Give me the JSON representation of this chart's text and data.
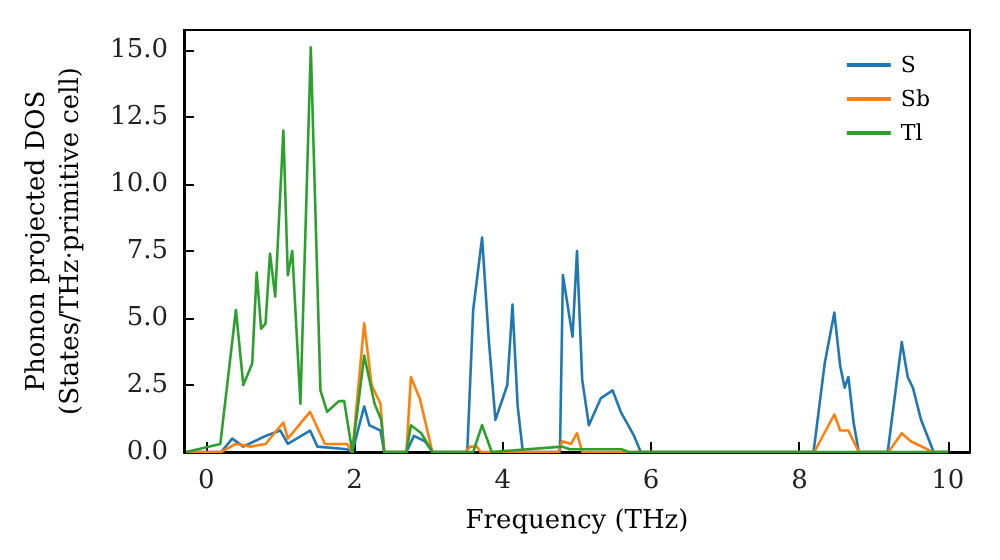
{
  "chart_data": {
    "type": "line",
    "xlabel": "Frequency (THz)",
    "ylabel": "Phonon projected DOS\n(States/THz·primitive cell)",
    "xlim": [
      -0.3,
      10.3
    ],
    "ylim": [
      0,
      15.75
    ],
    "xticks": [
      0,
      2,
      4,
      6,
      8,
      10
    ],
    "yticks": [
      {
        "value": 0,
        "label": "0.0"
      },
      {
        "value": 2.5,
        "label": "2.5"
      },
      {
        "value": 5,
        "label": "5.0"
      },
      {
        "value": 7.5,
        "label": "7.5"
      },
      {
        "value": 10,
        "label": "10.0"
      },
      {
        "value": 12.5,
        "label": "12.5"
      },
      {
        "value": 15,
        "label": "15.0"
      }
    ],
    "legend": "top right",
    "marker": "none",
    "line_style": "solid",
    "series": [
      {
        "name": "S",
        "color": "#1f77b4",
        "x": [
          -0.27,
          0.2,
          0.35,
          0.5,
          0.8,
          1.0,
          1.1,
          1.4,
          1.5,
          1.9,
          1.97,
          2.13,
          2.2,
          2.35,
          2.4,
          2.7,
          2.8,
          2.95,
          3.05,
          3.52,
          3.6,
          3.72,
          3.81,
          3.9,
          4.06,
          4.13,
          4.2,
          4.27,
          4.77,
          4.81,
          4.94,
          5.0,
          5.07,
          5.16,
          5.32,
          5.48,
          5.59,
          5.77,
          5.86,
          8.19,
          8.34,
          8.47,
          8.55,
          8.61,
          8.66,
          8.73,
          8.8,
          9.19,
          9.38,
          9.46,
          9.53,
          9.64,
          9.81,
          10.0
        ],
        "values": [
          0,
          0,
          0.5,
          0.2,
          0.6,
          0.8,
          0.3,
          0.8,
          0.2,
          0.1,
          0,
          1.7,
          1.0,
          0.8,
          0,
          0,
          0.6,
          0.4,
          0,
          0,
          5.3,
          8.0,
          4.2,
          1.2,
          2.5,
          5.5,
          1.7,
          0,
          0,
          6.6,
          4.3,
          7.5,
          2.7,
          1.0,
          2.0,
          2.3,
          1.5,
          0.6,
          0,
          0,
          3.3,
          5.2,
          3.2,
          2.4,
          2.8,
          1.1,
          0,
          0,
          4.1,
          2.8,
          2.4,
          1.2,
          0,
          0
        ]
      },
      {
        "name": "Sb",
        "color": "#ff7f0e",
        "x": [
          -0.27,
          0.2,
          0.4,
          0.6,
          0.8,
          1.04,
          1.1,
          1.4,
          1.6,
          1.9,
          1.97,
          2.13,
          2.23,
          2.35,
          2.4,
          2.7,
          2.76,
          2.88,
          3.05,
          3.5,
          3.56,
          3.65,
          3.7,
          4.75,
          4.8,
          4.92,
          5.0,
          5.07,
          8.2,
          8.47,
          8.55,
          8.66,
          8.8,
          9.2,
          9.38,
          9.5,
          9.8,
          10.0
        ],
        "values": [
          0,
          0,
          0.3,
          0.2,
          0.3,
          1.1,
          0.5,
          1.5,
          0.3,
          0.3,
          0,
          4.8,
          2.5,
          1.8,
          0,
          0,
          2.8,
          2.0,
          0,
          0,
          0.2,
          0.2,
          0,
          0,
          0.4,
          0.3,
          0.7,
          0,
          0,
          1.4,
          0.8,
          0.8,
          0,
          0,
          0.7,
          0.4,
          0,
          0
        ]
      },
      {
        "name": "Tl",
        "color": "#2ca02c",
        "x": [
          -0.27,
          0.19,
          0.4,
          0.5,
          0.62,
          0.68,
          0.74,
          0.8,
          0.86,
          0.93,
          1.04,
          1.1,
          1.16,
          1.27,
          1.41,
          1.54,
          1.63,
          1.79,
          1.86,
          1.97,
          2.13,
          2.27,
          2.36,
          2.4,
          2.7,
          2.76,
          2.9,
          3.05,
          3.6,
          3.72,
          3.85,
          4.8,
          4.9,
          5.6,
          5.7,
          10.0
        ],
        "values": [
          0,
          0.3,
          5.3,
          2.5,
          3.3,
          6.7,
          4.6,
          4.8,
          7.4,
          5.8,
          12.0,
          6.6,
          7.5,
          1.8,
          15.1,
          2.3,
          1.5,
          1.9,
          1.9,
          0,
          3.6,
          1.8,
          1.2,
          0,
          0,
          1.0,
          0.7,
          0,
          0,
          1.0,
          0,
          0.2,
          0.1,
          0.1,
          0,
          0
        ]
      }
    ]
  }
}
